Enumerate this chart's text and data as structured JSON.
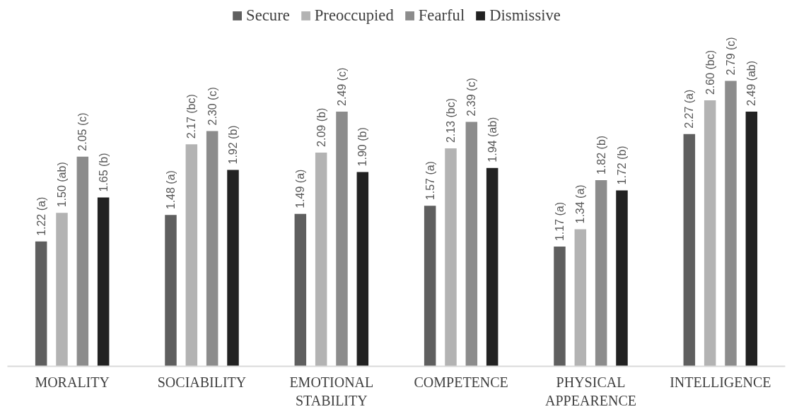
{
  "chart_data": {
    "type": "bar",
    "categories": [
      "MORALITY",
      "SOCIABILITY",
      "EMOTIONAL\nSTABILITY",
      "COMPETENCE",
      "PHYSICAL\nAPPEARENCE",
      "INTELLIGENCE"
    ],
    "series": [
      {
        "name": "Secure",
        "color": "#5f5f5f",
        "values": [
          1.22,
          1.48,
          1.49,
          1.57,
          1.17,
          2.27
        ],
        "value_labels": [
          "1.22 (a)",
          "1.48 (a)",
          "1.49 (a)",
          "1.57 (a)",
          "1.17 (a)",
          "2.27 (a)"
        ]
      },
      {
        "name": "Preoccupied",
        "color": "#b3b3b3",
        "values": [
          1.5,
          2.17,
          2.09,
          2.13,
          1.34,
          2.6
        ],
        "value_labels": [
          "1.50 (ab)",
          "2.17 (bc)",
          "2.09 (b)",
          "2.13 (bc)",
          "1.34 (a)",
          "2.60 (bc)"
        ]
      },
      {
        "name": "Fearful",
        "color": "#8c8c8c",
        "values": [
          2.05,
          2.3,
          2.49,
          2.39,
          1.82,
          2.79
        ],
        "value_labels": [
          "2.05 (c)",
          "2.30 (c)",
          "2.49 (c)",
          "2.39 (c)",
          "1.82 (b)",
          "2.79 (c)"
        ]
      },
      {
        "name": "Dismissive",
        "color": "#222222",
        "values": [
          1.65,
          1.92,
          1.9,
          1.94,
          1.72,
          2.49
        ],
        "value_labels": [
          "1.65 (b)",
          "1.92 (b)",
          "1.90 (b)",
          "1.94 (ab)",
          "1.72 (b)",
          "2.49 (ab)"
        ]
      }
    ],
    "tick_labels": "x",
    "grid": false,
    "legend": "top"
  }
}
